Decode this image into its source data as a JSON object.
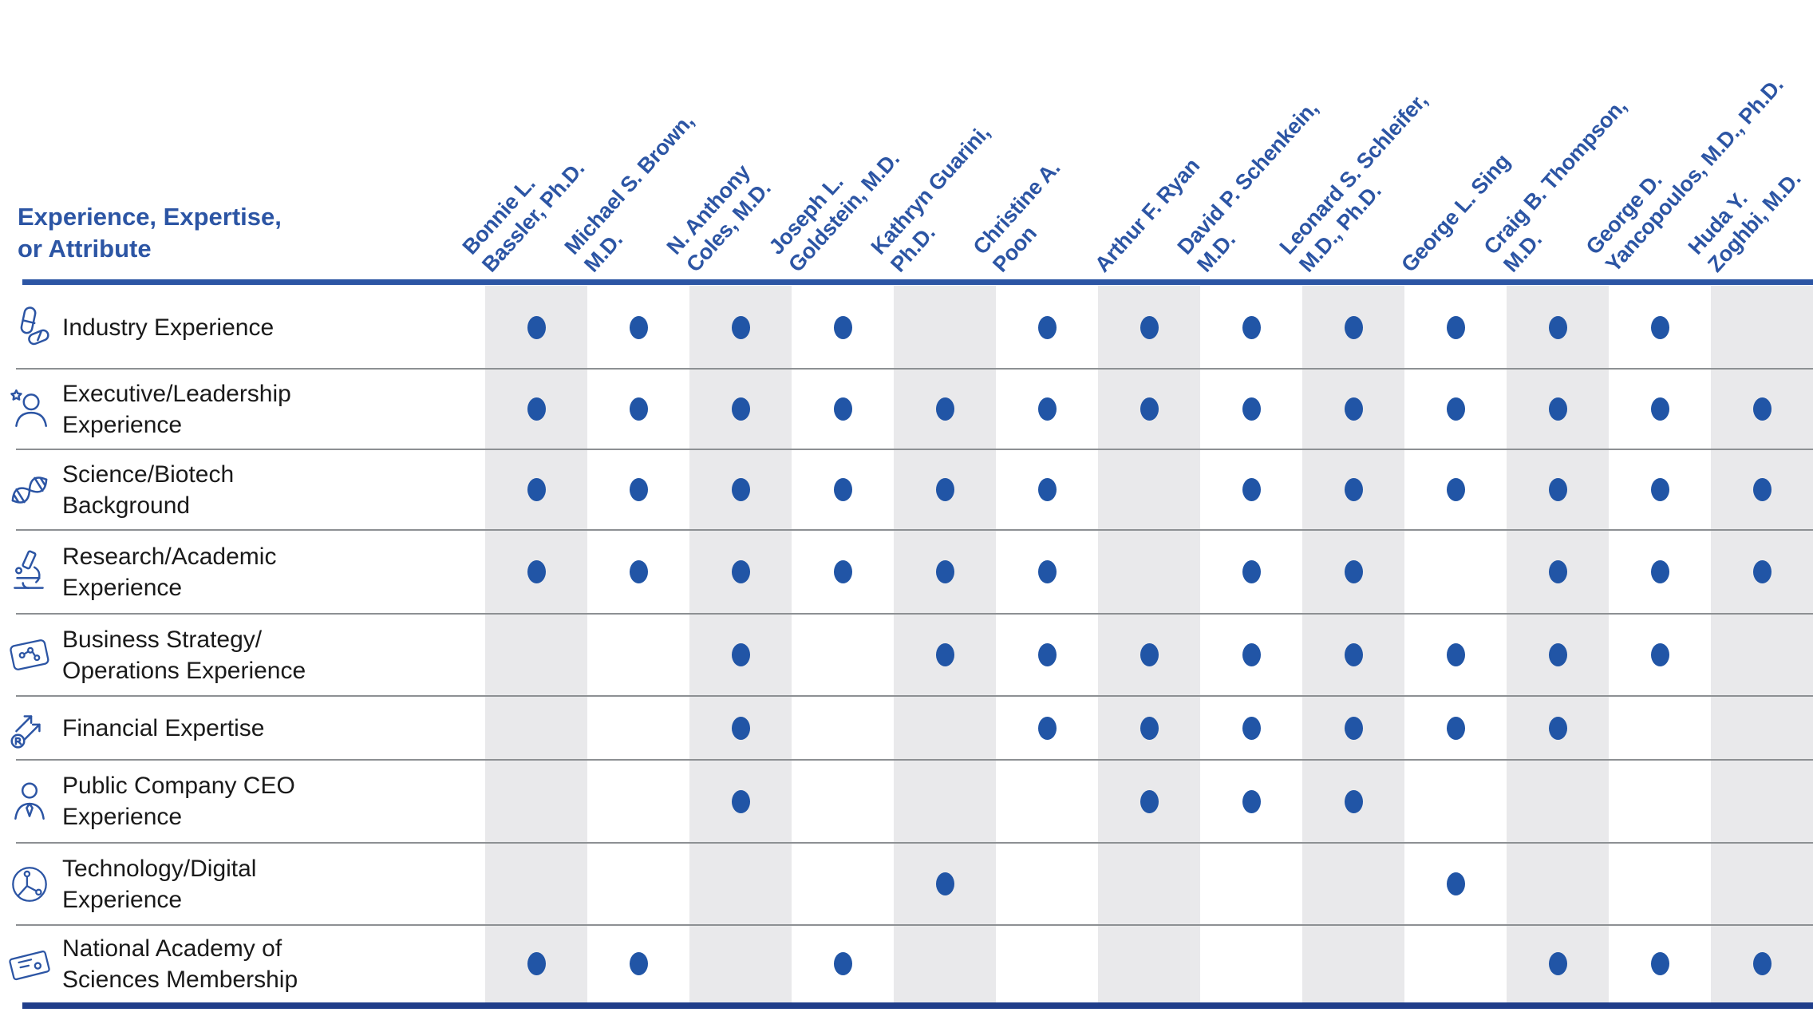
{
  "title_block": {
    "title_line1": "Experience, Expertise,",
    "title_line2": "or Attribute"
  },
  "colors": {
    "accent_blue": "#2C55A4",
    "dot_blue": "#2155A6",
    "stripe_gray": "#E9E9EB",
    "separator_gray": "#8D9093",
    "bottom_rule_navy": "#203E8A"
  },
  "columns": [
    {
      "lines": [
        "Bonnie L.",
        "Bassler, Ph.D."
      ]
    },
    {
      "lines": [
        "Michael S. Brown,",
        "M.D."
      ]
    },
    {
      "lines": [
        "N. Anthony",
        "Coles, M.D."
      ]
    },
    {
      "lines": [
        "Joseph L.",
        "Goldstein, M.D."
      ]
    },
    {
      "lines": [
        "Kathryn Guarini,",
        "Ph.D."
      ]
    },
    {
      "lines": [
        "Christine A.",
        "Poon"
      ]
    },
    {
      "lines": [
        "Arthur F. Ryan"
      ]
    },
    {
      "lines": [
        "David P. Schenkein,",
        "M.D."
      ]
    },
    {
      "lines": [
        "Leonard S. Schleifer,",
        "M.D., Ph.D."
      ]
    },
    {
      "lines": [
        "George L. Sing"
      ]
    },
    {
      "lines": [
        "Craig B. Thompson,",
        "M.D."
      ]
    },
    {
      "lines": [
        "George D.",
        "Yancopoulos, M.D., Ph.D."
      ]
    },
    {
      "lines": [
        "Huda Y.",
        "Zoghbi, M.D."
      ]
    }
  ],
  "rows": [
    {
      "icon": "pills-icon",
      "label_lines": [
        "Industry Experience"
      ],
      "dots": [
        1,
        1,
        1,
        1,
        0,
        1,
        1,
        1,
        1,
        1,
        1,
        1,
        0
      ]
    },
    {
      "icon": "leader-star-icon",
      "label_lines": [
        "Executive/Leadership",
        "Experience"
      ],
      "dots": [
        1,
        1,
        1,
        1,
        1,
        1,
        1,
        1,
        1,
        1,
        1,
        1,
        1
      ]
    },
    {
      "icon": "dna-icon",
      "label_lines": [
        "Science/Biotech",
        "Background"
      ],
      "dots": [
        1,
        1,
        1,
        1,
        1,
        1,
        0,
        1,
        1,
        1,
        1,
        1,
        1
      ]
    },
    {
      "icon": "microscope-icon",
      "label_lines": [
        "Research/Academic",
        "Experience"
      ],
      "dots": [
        1,
        1,
        1,
        1,
        1,
        1,
        0,
        1,
        1,
        0,
        1,
        1,
        1
      ]
    },
    {
      "icon": "strategy-card-icon",
      "label_lines": [
        "Business Strategy/",
        "Operations Experience"
      ],
      "dots": [
        0,
        0,
        1,
        0,
        1,
        1,
        1,
        1,
        1,
        1,
        1,
        1,
        0
      ]
    },
    {
      "icon": "financial-growth-icon",
      "label_lines": [
        "Financial Expertise"
      ],
      "dots": [
        0,
        0,
        1,
        0,
        0,
        1,
        1,
        1,
        1,
        1,
        1,
        0,
        0
      ]
    },
    {
      "icon": "ceo-person-icon",
      "label_lines": [
        "Public Company CEO",
        "Experience"
      ],
      "dots": [
        0,
        0,
        1,
        0,
        0,
        0,
        1,
        1,
        1,
        0,
        0,
        0,
        0
      ]
    },
    {
      "icon": "tech-network-icon",
      "label_lines": [
        "Technology/Digital",
        "Experience"
      ],
      "dots": [
        0,
        0,
        0,
        0,
        1,
        0,
        0,
        0,
        0,
        1,
        0,
        0,
        0
      ]
    },
    {
      "icon": "certificate-icon",
      "label_lines": [
        "National Academy of",
        "Sciences Membership"
      ],
      "dots": [
        1,
        1,
        0,
        1,
        0,
        0,
        0,
        0,
        0,
        0,
        1,
        1,
        1
      ]
    }
  ],
  "chart_data": {
    "type": "table",
    "title": "Experience, Expertise, or Attribute",
    "row_labels": [
      "Industry Experience",
      "Executive/Leadership Experience",
      "Science/Biotech Background",
      "Research/Academic Experience",
      "Business Strategy/Operations Experience",
      "Financial Expertise",
      "Public Company CEO Experience",
      "Technology/Digital Experience",
      "National Academy of Sciences Membership"
    ],
    "column_labels": [
      "Bonnie L. Bassler, Ph.D.",
      "Michael S. Brown, M.D.",
      "N. Anthony Coles, M.D.",
      "Joseph L. Goldstein, M.D.",
      "Kathryn Guarini, Ph.D.",
      "Christine A. Poon",
      "Arthur F. Ryan",
      "David P. Schenkein, M.D.",
      "Leonard S. Schleifer, M.D., Ph.D.",
      "George L. Sing",
      "Craig B. Thompson, M.D.",
      "George D. Yancopoulos, M.D., Ph.D.",
      "Huda Y. Zoghbi, M.D."
    ],
    "matrix": [
      [
        1,
        1,
        1,
        1,
        0,
        1,
        1,
        1,
        1,
        1,
        1,
        1,
        0
      ],
      [
        1,
        1,
        1,
        1,
        1,
        1,
        1,
        1,
        1,
        1,
        1,
        1,
        1
      ],
      [
        1,
        1,
        1,
        1,
        1,
        1,
        0,
        1,
        1,
        1,
        1,
        1,
        1
      ],
      [
        1,
        1,
        1,
        1,
        1,
        1,
        0,
        1,
        1,
        0,
        1,
        1,
        1
      ],
      [
        0,
        0,
        1,
        0,
        1,
        1,
        1,
        1,
        1,
        1,
        1,
        1,
        0
      ],
      [
        0,
        0,
        1,
        0,
        0,
        1,
        1,
        1,
        1,
        1,
        1,
        0,
        0
      ],
      [
        0,
        0,
        1,
        0,
        0,
        0,
        1,
        1,
        1,
        0,
        0,
        0,
        0
      ],
      [
        0,
        0,
        0,
        0,
        1,
        0,
        0,
        0,
        0,
        1,
        0,
        0,
        0
      ],
      [
        1,
        1,
        0,
        1,
        0,
        0,
        0,
        0,
        0,
        0,
        1,
        1,
        1
      ]
    ]
  }
}
